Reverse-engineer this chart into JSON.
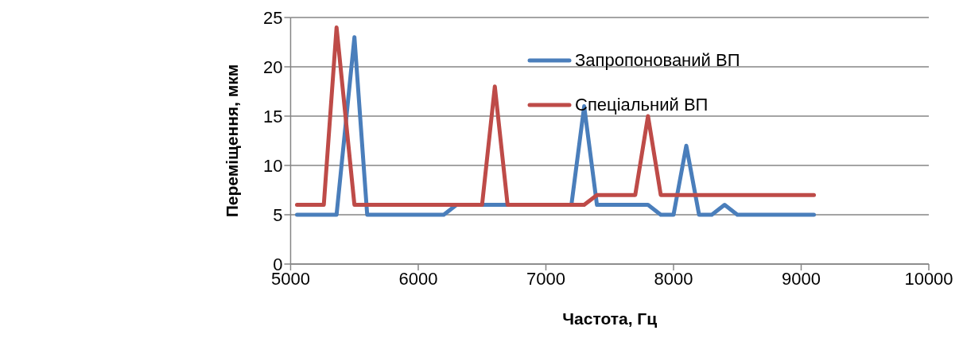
{
  "chart_data": {
    "type": "line",
    "xlabel": "Частота, Гц",
    "ylabel": "Переміщення, мкм",
    "x": [
      5050,
      5260,
      5360,
      5500,
      5600,
      5700,
      5800,
      5900,
      6000,
      6100,
      6200,
      6300,
      6400,
      6500,
      6600,
      6700,
      6800,
      6900,
      7000,
      7100,
      7200,
      7300,
      7400,
      7500,
      7600,
      7700,
      7800,
      7900,
      8000,
      8100,
      8200,
      8300,
      8400,
      8500,
      8600,
      8700,
      8800,
      8900,
      9000,
      9100
    ],
    "series": [
      {
        "name": "Запропонований ВП",
        "color": "#4a7ebb",
        "values": [
          5,
          5,
          5,
          23,
          5,
          5,
          5,
          5,
          5,
          5,
          5,
          6,
          null,
          6,
          6,
          6,
          null,
          null,
          null,
          null,
          6,
          16,
          6,
          6,
          6,
          6,
          6,
          5,
          5,
          12,
          5,
          5,
          6,
          5,
          5,
          5,
          5,
          5,
          5,
          5
        ]
      },
      {
        "name": "Спеціальний ВП",
        "color": "#be4b48",
        "values": [
          6,
          6,
          24,
          6,
          6,
          6,
          6,
          6,
          6,
          6,
          6,
          6,
          6,
          6,
          18,
          6,
          6,
          6,
          6,
          6,
          6,
          6,
          7,
          7,
          7,
          7,
          15,
          7,
          7,
          7,
          7,
          7,
          7,
          7,
          7,
          7,
          7,
          7,
          7,
          7
        ]
      }
    ],
    "xlim": [
      5000,
      10000
    ],
    "xticks": [
      5000,
      6000,
      7000,
      8000,
      9000,
      10000
    ],
    "ylim": [
      0,
      25
    ],
    "yticks": [
      0,
      5,
      10,
      15,
      20,
      25
    ],
    "grid": "y",
    "legend": "top right",
    "marker": "none",
    "line_style": "solid"
  }
}
